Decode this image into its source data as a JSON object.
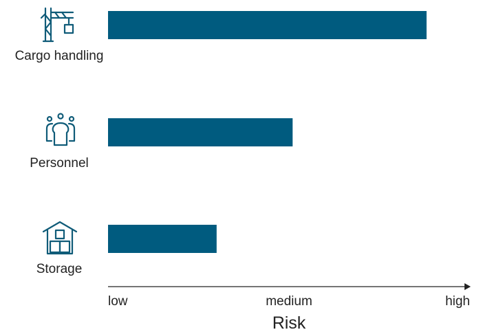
{
  "chart_data": {
    "type": "bar",
    "orientation": "horizontal",
    "categories": [
      "Cargo handling",
      "Personnel",
      "Storage"
    ],
    "values": [
      0.88,
      0.51,
      0.3
    ],
    "xlim": [
      0,
      1
    ],
    "x_ticks": [
      {
        "value": 0,
        "label": "low"
      },
      {
        "value": 0.5,
        "label": "medium"
      },
      {
        "value": 1,
        "label": "high"
      }
    ],
    "xlabel": "Risk",
    "ylabel": "",
    "title": "",
    "grid": false,
    "legend": "none",
    "category_icons": [
      "crane-icon",
      "people-icon",
      "warehouse-icon"
    ],
    "colors": {
      "bar": "#005b7f",
      "icon": "#0f5b78",
      "axis": "#222222"
    }
  }
}
